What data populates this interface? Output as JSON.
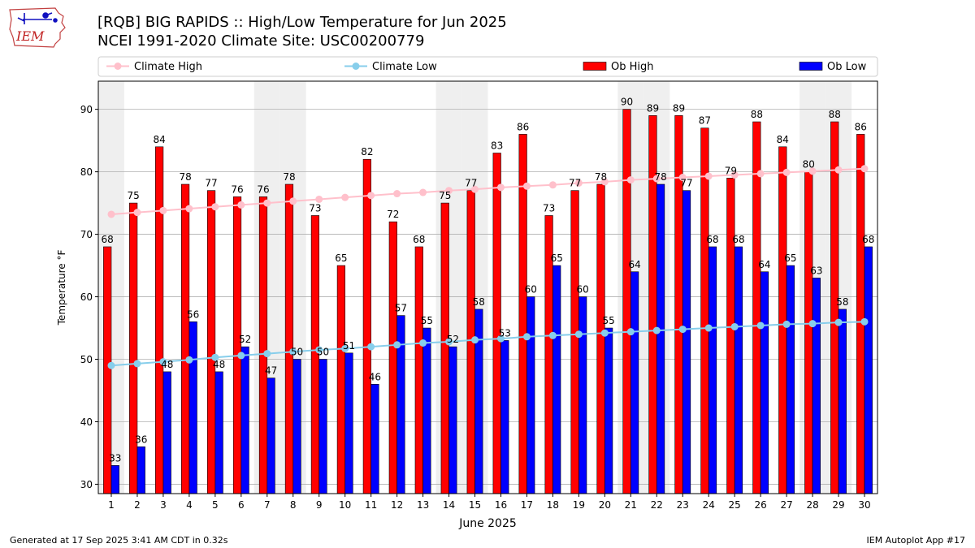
{
  "header": {
    "title_line1": "[RQB] BIG RAPIDS :: High/Low Temperature for Jun 2025",
    "title_line2": "NCEI 1991-2020 Climate Site: USC00200779",
    "logo_text": "IEM"
  },
  "footer": {
    "generated": "Generated at 17 Sep 2025 3:41 AM CDT in 0.32s",
    "app": "IEM Autoplot App #17"
  },
  "chart_data": {
    "type": "bar",
    "xlabel": "June 2025",
    "ylabel": "Temperature °F",
    "ylim": [
      28.5,
      94.5
    ],
    "yticks": [
      30,
      40,
      50,
      60,
      70,
      80,
      90
    ],
    "grid": true,
    "legend_placement": "top",
    "categories": [
      1,
      2,
      3,
      4,
      5,
      6,
      7,
      8,
      9,
      10,
      11,
      12,
      13,
      14,
      15,
      16,
      17,
      18,
      19,
      20,
      21,
      22,
      23,
      24,
      25,
      26,
      27,
      28,
      29,
      30
    ],
    "weekend_days": [
      1,
      7,
      8,
      14,
      15,
      21,
      22,
      28,
      29
    ],
    "series": [
      {
        "name": "Climate High",
        "kind": "line",
        "color": "#ffc0cb",
        "values": [
          73.2,
          73.5,
          73.8,
          74.1,
          74.4,
          74.7,
          75.0,
          75.3,
          75.6,
          75.9,
          76.2,
          76.5,
          76.7,
          77.0,
          77.2,
          77.5,
          77.7,
          77.9,
          78.2,
          78.4,
          78.7,
          78.9,
          79.1,
          79.3,
          79.5,
          79.7,
          79.9,
          80.1,
          80.3,
          80.5
        ]
      },
      {
        "name": "Climate Low",
        "kind": "line",
        "color": "#87ceeb",
        "values": [
          49.0,
          49.3,
          49.6,
          49.9,
          50.3,
          50.6,
          50.9,
          51.2,
          51.5,
          51.7,
          52.0,
          52.3,
          52.6,
          52.8,
          53.1,
          53.3,
          53.6,
          53.8,
          54.0,
          54.2,
          54.4,
          54.6,
          54.8,
          55.0,
          55.2,
          55.4,
          55.6,
          55.7,
          55.9,
          56.0
        ]
      },
      {
        "name": "Ob High",
        "kind": "bar",
        "color": "#ff0000",
        "values": [
          68,
          75,
          84,
          78,
          77,
          76,
          76,
          78,
          73,
          65,
          82,
          72,
          68,
          75,
          77,
          83,
          86,
          73,
          77,
          78,
          90,
          89,
          89,
          87,
          79,
          88,
          84,
          80,
          88,
          86
        ]
      },
      {
        "name": "Ob Low",
        "kind": "bar",
        "color": "#0000ff",
        "values": [
          33,
          36,
          48,
          56,
          48,
          52,
          47,
          50,
          50,
          51,
          46,
          57,
          55,
          52,
          58,
          53,
          60,
          65,
          60,
          55,
          64,
          78,
          77,
          68,
          68,
          64,
          65,
          63,
          58,
          68
        ]
      }
    ]
  }
}
